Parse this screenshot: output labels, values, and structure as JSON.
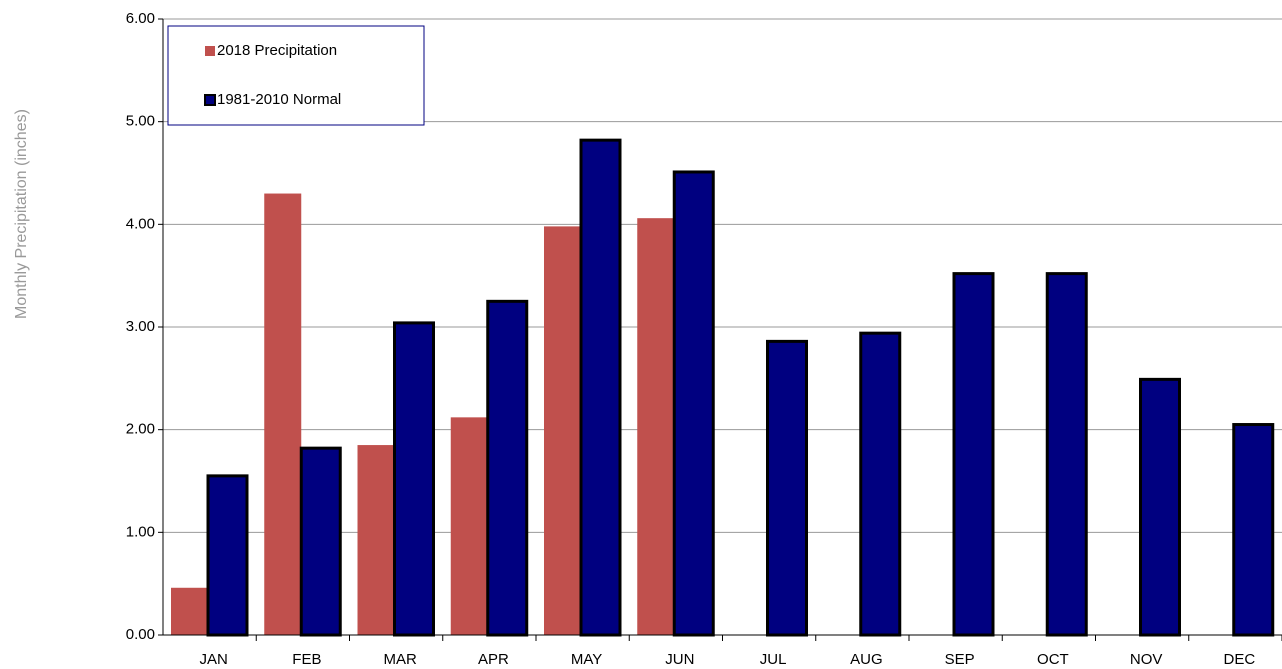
{
  "chart_data": {
    "type": "bar",
    "y_label": "Monthly Precipitation (inches)",
    "categories": [
      "JAN",
      "FEB",
      "MAR",
      "APR",
      "MAY",
      "JUN",
      "JUL",
      "AUG",
      "SEP",
      "OCT",
      "NOV",
      "DEC"
    ],
    "series": [
      {
        "name": "2018 Precipitation",
        "color": "#c0504d",
        "values": [
          0.46,
          4.3,
          1.85,
          2.12,
          3.98,
          4.06,
          null,
          null,
          null,
          null,
          null,
          null
        ]
      },
      {
        "name": "1981-2010 Normal",
        "color": "#000080",
        "values": [
          1.55,
          1.82,
          3.04,
          3.25,
          4.82,
          4.51,
          2.86,
          2.94,
          3.52,
          3.52,
          2.49,
          2.05
        ]
      }
    ],
    "ylim": [
      0,
      6
    ],
    "yticks": [
      {
        "value": 0,
        "label": "0.00"
      },
      {
        "value": 1,
        "label": "1.00"
      },
      {
        "value": 2,
        "label": "2.00"
      },
      {
        "value": 3,
        "label": "3.00"
      },
      {
        "value": 4,
        "label": "4.00"
      },
      {
        "value": 5,
        "label": "5.00"
      },
      {
        "value": 6,
        "label": "6.00"
      }
    ],
    "grid": true
  }
}
